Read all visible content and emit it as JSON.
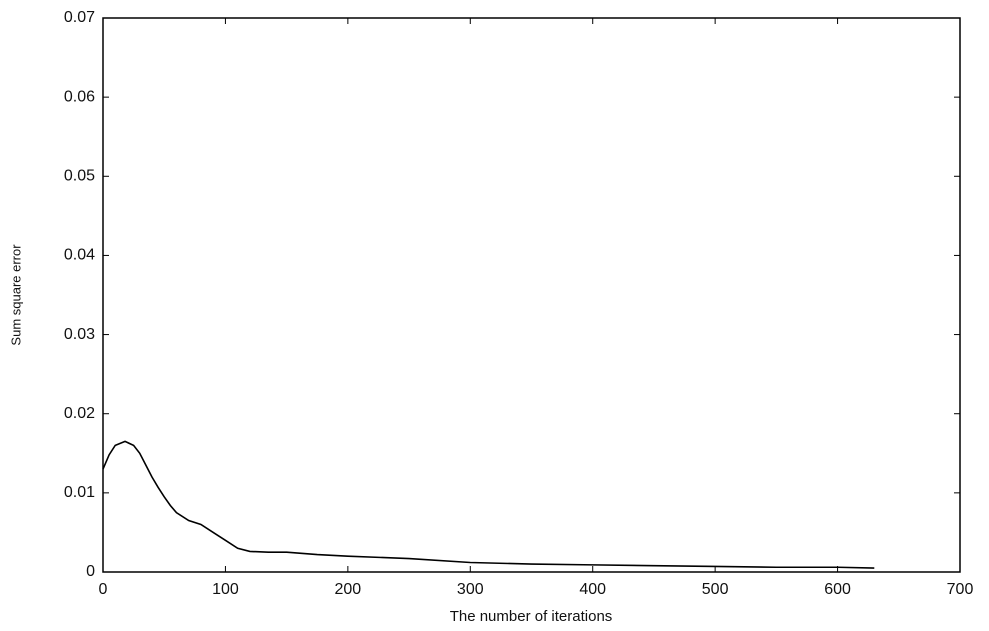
{
  "chart_data": {
    "type": "line",
    "x_label": "The number of iterations",
    "y_label": "Sum square error",
    "xlim": [
      0,
      700
    ],
    "xticks": [
      0,
      100,
      200,
      300,
      400,
      500,
      600,
      700
    ],
    "ylim": [
      0,
      0.07
    ],
    "yticks": [
      0,
      0.01,
      0.02,
      0.03,
      0.04,
      0.05,
      0.06,
      0.07
    ],
    "grid": false,
    "series": [
      {
        "color": "#000000",
        "x": [
          0,
          5,
          10,
          18,
          25,
          30,
          35,
          40,
          45,
          50,
          55,
          60,
          70,
          80,
          90,
          100,
          110,
          120,
          135,
          150,
          175,
          200,
          250,
          300,
          350,
          400,
          450,
          500,
          550,
          600,
          630
        ],
        "values": [
          0.013,
          0.0148,
          0.016,
          0.0165,
          0.016,
          0.015,
          0.0135,
          0.012,
          0.0107,
          0.0095,
          0.0084,
          0.0075,
          0.0065,
          0.006,
          0.005,
          0.004,
          0.003,
          0.0026,
          0.0025,
          0.0025,
          0.0022,
          0.002,
          0.0017,
          0.0012,
          0.001,
          0.0009,
          0.0008,
          0.0007,
          0.0006,
          0.0006,
          0.0005
        ]
      }
    ]
  }
}
